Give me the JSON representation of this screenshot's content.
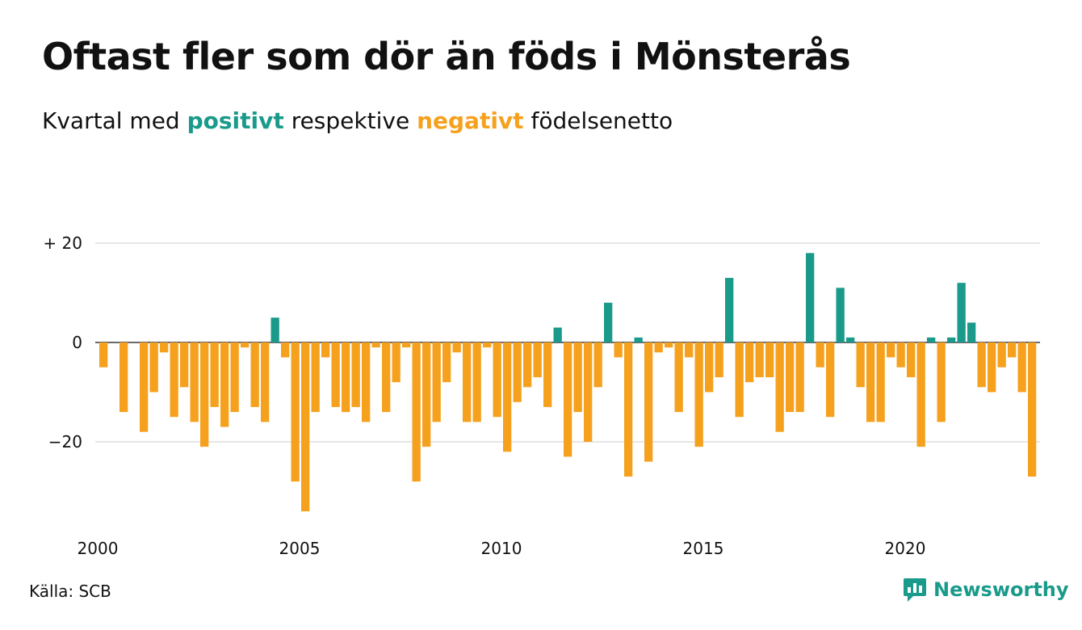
{
  "title": "Oftast fler som dör än föds i Mönsterås",
  "subtitle": {
    "prefix": "Kvartal med",
    "positive": "positivt",
    "middle": "respektive",
    "negative": "negativt",
    "suffix": "födelsenetto"
  },
  "colors": {
    "positive": "#1a9a8a",
    "negative": "#f5a11e",
    "grid": "#dddddd",
    "text": "#111111"
  },
  "source": "Källa: SCB",
  "brand": {
    "name": "Newsworthy",
    "icon": "newsworthy-logo-icon"
  },
  "chart_data": {
    "type": "bar",
    "title": "Oftast fler som dör än föds i Mönsterås",
    "subtitle": "Kvartal med positivt respektive negativt födelsenetto",
    "xlabel": "",
    "ylabel": "",
    "x_start": 2000,
    "periods_per_year": 4,
    "xlim": [
      2000,
      2023.5
    ],
    "ylim": [
      -36,
      21
    ],
    "y_ticks": [
      20,
      0,
      -20
    ],
    "y_tick_labels": [
      "+ 20",
      "0",
      "−20"
    ],
    "x_ticks": [
      2000,
      2005,
      2010,
      2015,
      2020
    ],
    "x_tick_labels": [
      "2000",
      "2005",
      "2010",
      "2015",
      "2020"
    ],
    "grid": true,
    "values": [
      -5,
      0,
      -14,
      0,
      -18,
      -10,
      -2,
      -15,
      -9,
      -16,
      -21,
      -13,
      -17,
      -14,
      -1,
      -13,
      -16,
      5,
      -3,
      -28,
      -34,
      -14,
      -3,
      -13,
      -14,
      -13,
      -16,
      -1,
      -14,
      -8,
      -1,
      -28,
      -21,
      -16,
      -8,
      -2,
      -16,
      -16,
      -1,
      -15,
      -22,
      -12,
      -9,
      -7,
      -13,
      3,
      -23,
      -14,
      -20,
      -9,
      8,
      -3,
      -27,
      1,
      -24,
      -2,
      -1,
      -14,
      -3,
      -21,
      -10,
      -7,
      13,
      -15,
      -8,
      -7,
      -7,
      -18,
      -14,
      -14,
      18,
      -5,
      -15,
      11,
      1,
      -9,
      -16,
      -16,
      -3,
      -5,
      -7,
      -21,
      1,
      -16,
      1,
      12,
      4,
      -9,
      -10,
      -5,
      -3,
      -10,
      -27
    ]
  }
}
